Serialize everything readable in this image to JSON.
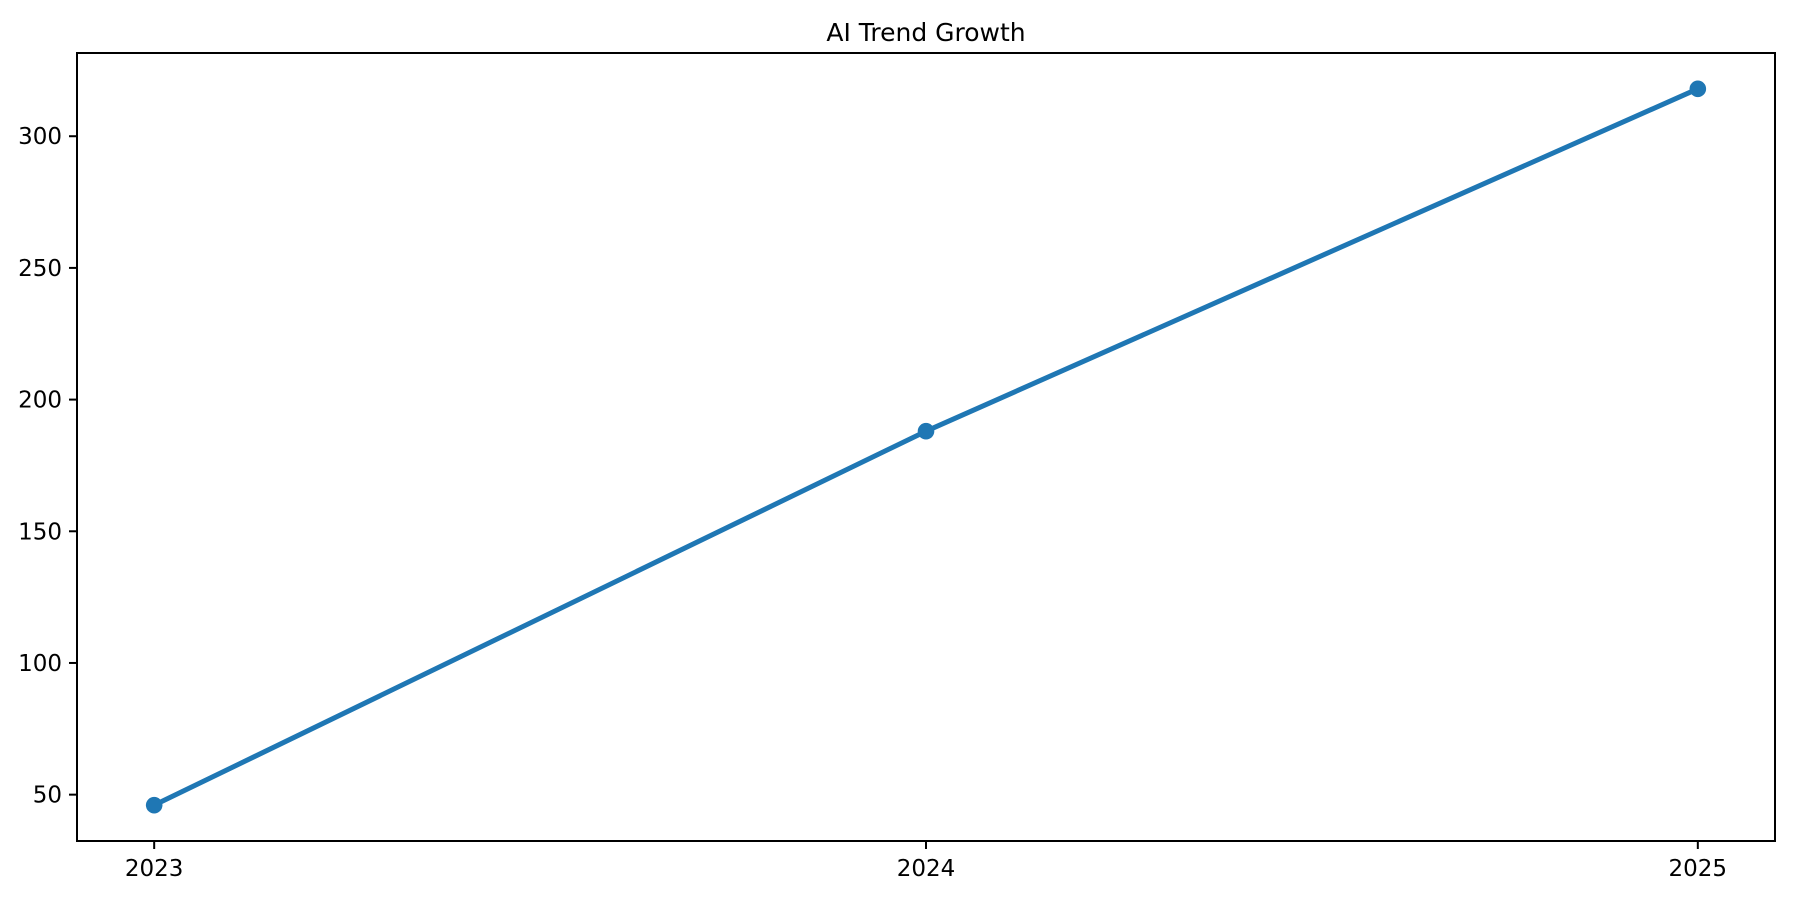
{
  "page": {
    "background": "#ffffff"
  },
  "chart_data": {
    "type": "line",
    "title": "AI Trend Growth",
    "xlabel": "",
    "ylabel": "",
    "x": [
      2023,
      2024,
      2025
    ],
    "x_tick_labels": [
      "2023",
      "2024",
      "2025"
    ],
    "values": [
      46,
      188,
      318
    ],
    "yticks": [
      50,
      100,
      150,
      200,
      250,
      300
    ],
    "y_tick_labels": [
      "50",
      "100",
      "150",
      "200",
      "250",
      "300"
    ],
    "xlim": [
      2022.9,
      2025.1
    ],
    "ylim": [
      32.4,
      331.6
    ],
    "grid": false,
    "legend": "none",
    "line_color": "#1f77b4",
    "marker": "circle",
    "spine_color": "#000000",
    "background_color": "#ffffff"
  }
}
